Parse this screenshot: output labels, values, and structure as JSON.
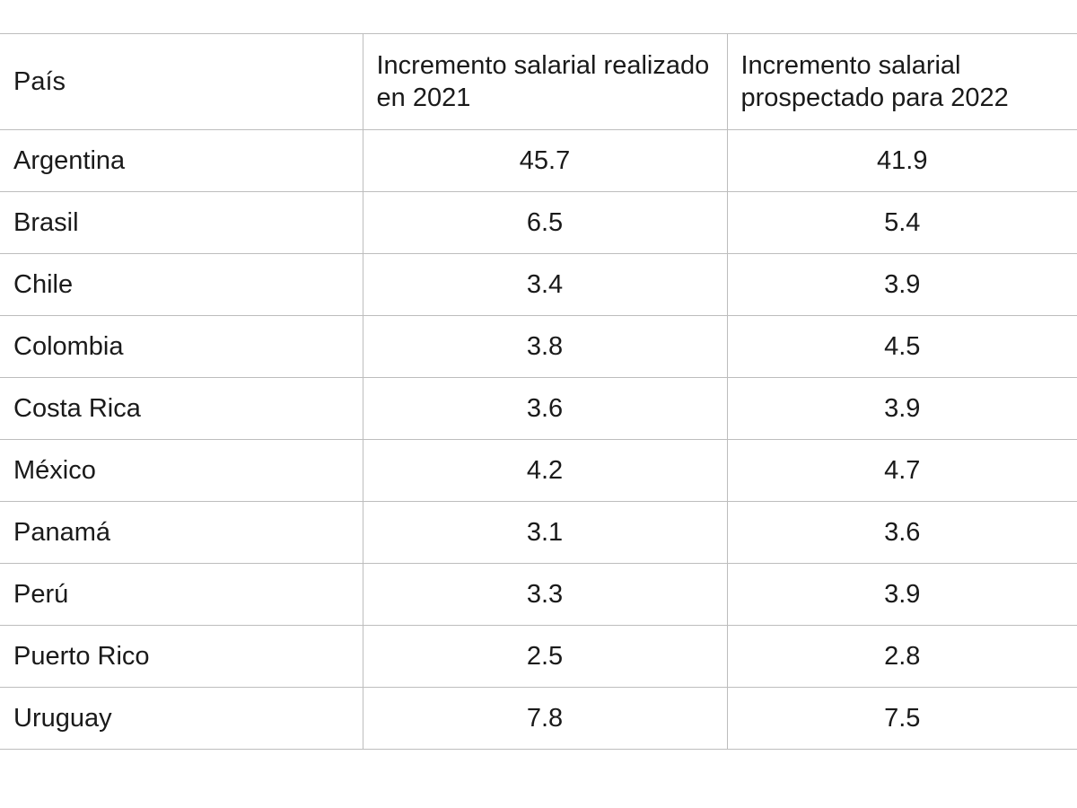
{
  "table": {
    "headers": [
      "País",
      "Incremento salarial realizado en 2021",
      "Incremento salarial prospectado para 2022"
    ],
    "rows": [
      {
        "country": "Argentina",
        "realizado_2021": "45.7",
        "prospectado_2022": "41.9"
      },
      {
        "country": "Brasil",
        "realizado_2021": "6.5",
        "prospectado_2022": "5.4"
      },
      {
        "country": "Chile",
        "realizado_2021": "3.4",
        "prospectado_2022": "3.9"
      },
      {
        "country": "Colombia",
        "realizado_2021": "3.8",
        "prospectado_2022": "4.5"
      },
      {
        "country": "Costa Rica",
        "realizado_2021": "3.6",
        "prospectado_2022": "3.9"
      },
      {
        "country": "México",
        "realizado_2021": "4.2",
        "prospectado_2022": "4.7"
      },
      {
        "country": "Panamá",
        "realizado_2021": "3.1",
        "prospectado_2022": "3.6"
      },
      {
        "country": "Perú",
        "realizado_2021": "3.3",
        "prospectado_2022": "3.9"
      },
      {
        "country": "Puerto Rico",
        "realizado_2021": "2.5",
        "prospectado_2022": "2.8"
      },
      {
        "country": "Uruguay",
        "realizado_2021": "7.8",
        "prospectado_2022": "7.5"
      }
    ]
  },
  "colors": {
    "border": "#bdbdbd",
    "text": "#1a1a1a",
    "background": "#ffffff"
  }
}
